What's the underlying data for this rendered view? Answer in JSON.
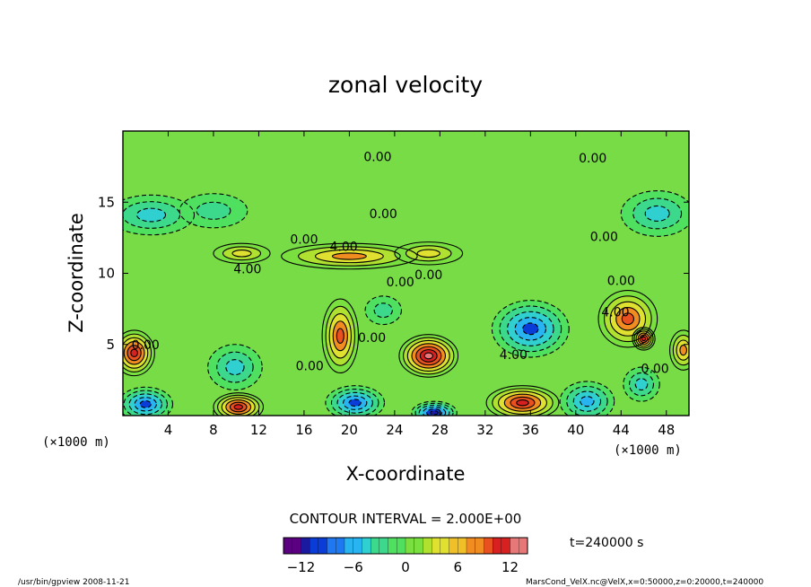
{
  "chart_data": {
    "type": "heatmap",
    "title": "zonal velocity",
    "xlabel": "X-coordinate",
    "ylabel": "Z-coordinate",
    "x_unit_label": "(×1000 m)",
    "z_unit_label": "(×1000 m)",
    "xlim": [
      0,
      50
    ],
    "ylim": [
      0,
      20
    ],
    "x_ticks": [
      4,
      8,
      12,
      16,
      20,
      24,
      28,
      32,
      36,
      40,
      44,
      48
    ],
    "y_ticks": [
      5,
      10,
      15
    ],
    "colorbar": {
      "range": [
        -14,
        14
      ],
      "ticks": [
        -12,
        -6,
        0,
        6,
        12
      ],
      "colors": [
        "#5a0080",
        "#1a1aa0",
        "#0a3cd8",
        "#1e78f0",
        "#28b4f0",
        "#30d0d0",
        "#3cd88c",
        "#50e060",
        "#7ae040",
        "#b0e030",
        "#e0e030",
        "#f0c028",
        "#f08c20",
        "#e85020",
        "#d82020",
        "#e87878"
      ]
    },
    "contour_interval_label": "CONTOUR INTERVAL = 2.000E+00",
    "contour_labels": [
      {
        "text": "0.00",
        "x": 22.5,
        "z": 18.2
      },
      {
        "text": "0.00",
        "x": 41.5,
        "z": 18.1
      },
      {
        "text": "0.00",
        "x": 23.0,
        "z": 14.2
      },
      {
        "text": "0.00",
        "x": 42.5,
        "z": 12.6
      },
      {
        "text": "0.00",
        "x": 16.0,
        "z": 12.4
      },
      {
        "text": "4.00",
        "x": 19.5,
        "z": 11.9
      },
      {
        "text": "4.00",
        "x": 11.0,
        "z": 10.3
      },
      {
        "text": "0.00",
        "x": 24.5,
        "z": 9.4
      },
      {
        "text": "0.00",
        "x": 27.0,
        "z": 9.9
      },
      {
        "text": "0.00",
        "x": 44.0,
        "z": 9.5
      },
      {
        "text": "4.00",
        "x": 43.5,
        "z": 7.3
      },
      {
        "text": "0.00",
        "x": 22.0,
        "z": 5.5
      },
      {
        "text": "0.00",
        "x": 2.0,
        "z": 5.0
      },
      {
        "text": "0.00",
        "x": 16.5,
        "z": 3.5
      },
      {
        "text": "4.00",
        "x": 34.5,
        "z": 4.3
      },
      {
        "text": "0.00",
        "x": 47.0,
        "z": 3.3
      }
    ],
    "features": [
      {
        "x": 1.0,
        "z": 4.4,
        "value": 12,
        "rx": 1.8,
        "rz": 1.6
      },
      {
        "x": 19.2,
        "z": 5.6,
        "value": 10,
        "rx": 1.6,
        "rz": 2.6
      },
      {
        "x": 27.0,
        "z": 4.2,
        "value": 13,
        "rx": 2.6,
        "rz": 1.5
      },
      {
        "x": 44.6,
        "z": 6.8,
        "value": 10,
        "rx": 2.6,
        "rz": 2.0
      },
      {
        "x": 46.0,
        "z": 5.4,
        "value": 12,
        "rx": 1.0,
        "rz": 0.8
      },
      {
        "x": 35.3,
        "z": 0.9,
        "value": 12,
        "rx": 3.2,
        "rz": 1.2
      },
      {
        "x": 10.2,
        "z": 0.6,
        "value": 11,
        "rx": 2.2,
        "rz": 1.0
      },
      {
        "x": 49.5,
        "z": 4.6,
        "value": 8,
        "rx": 1.2,
        "rz": 1.4
      },
      {
        "x": 36.0,
        "z": 6.1,
        "value": -10,
        "rx": 3.4,
        "rz": 2.0
      },
      {
        "x": 9.9,
        "z": 3.4,
        "value": -6,
        "rx": 2.4,
        "rz": 1.6
      },
      {
        "x": 2.0,
        "z": 0.8,
        "value": -10,
        "rx": 2.4,
        "rz": 1.2
      },
      {
        "x": 20.5,
        "z": 0.9,
        "value": -10,
        "rx": 2.6,
        "rz": 1.2
      },
      {
        "x": 27.5,
        "z": 0.2,
        "value": -12,
        "rx": 2.0,
        "rz": 0.8
      },
      {
        "x": 41.0,
        "z": 1.0,
        "value": -8,
        "rx": 2.4,
        "rz": 1.4
      },
      {
        "x": 45.8,
        "z": 2.2,
        "value": -6,
        "rx": 1.6,
        "rz": 1.2
      },
      {
        "x": 23.0,
        "z": 7.4,
        "value": -4,
        "rx": 1.6,
        "rz": 1.0
      },
      {
        "x": 2.5,
        "z": 14.1,
        "value": -6,
        "rx": 3.8,
        "rz": 1.4
      },
      {
        "x": 8.0,
        "z": 14.4,
        "value": -4,
        "rx": 3.0,
        "rz": 1.2
      },
      {
        "x": 47.2,
        "z": 14.2,
        "value": -6,
        "rx": 3.2,
        "rz": 1.6
      },
      {
        "x": 20.0,
        "z": 11.2,
        "value": 8,
        "rx": 6.0,
        "rz": 0.9
      },
      {
        "x": 10.5,
        "z": 11.4,
        "value": 5,
        "rx": 2.5,
        "rz": 0.7
      },
      {
        "x": 27.0,
        "z": 11.4,
        "value": 5,
        "rx": 3.0,
        "rz": 0.8
      }
    ]
  },
  "caption": {
    "time_label": "t=240000 s",
    "footer_left": "/usr/bin/gpview  2008-11-21",
    "footer_right": "MarsCond_VelX.nc@VelX,x=0:50000,z=0:20000,t=240000"
  }
}
